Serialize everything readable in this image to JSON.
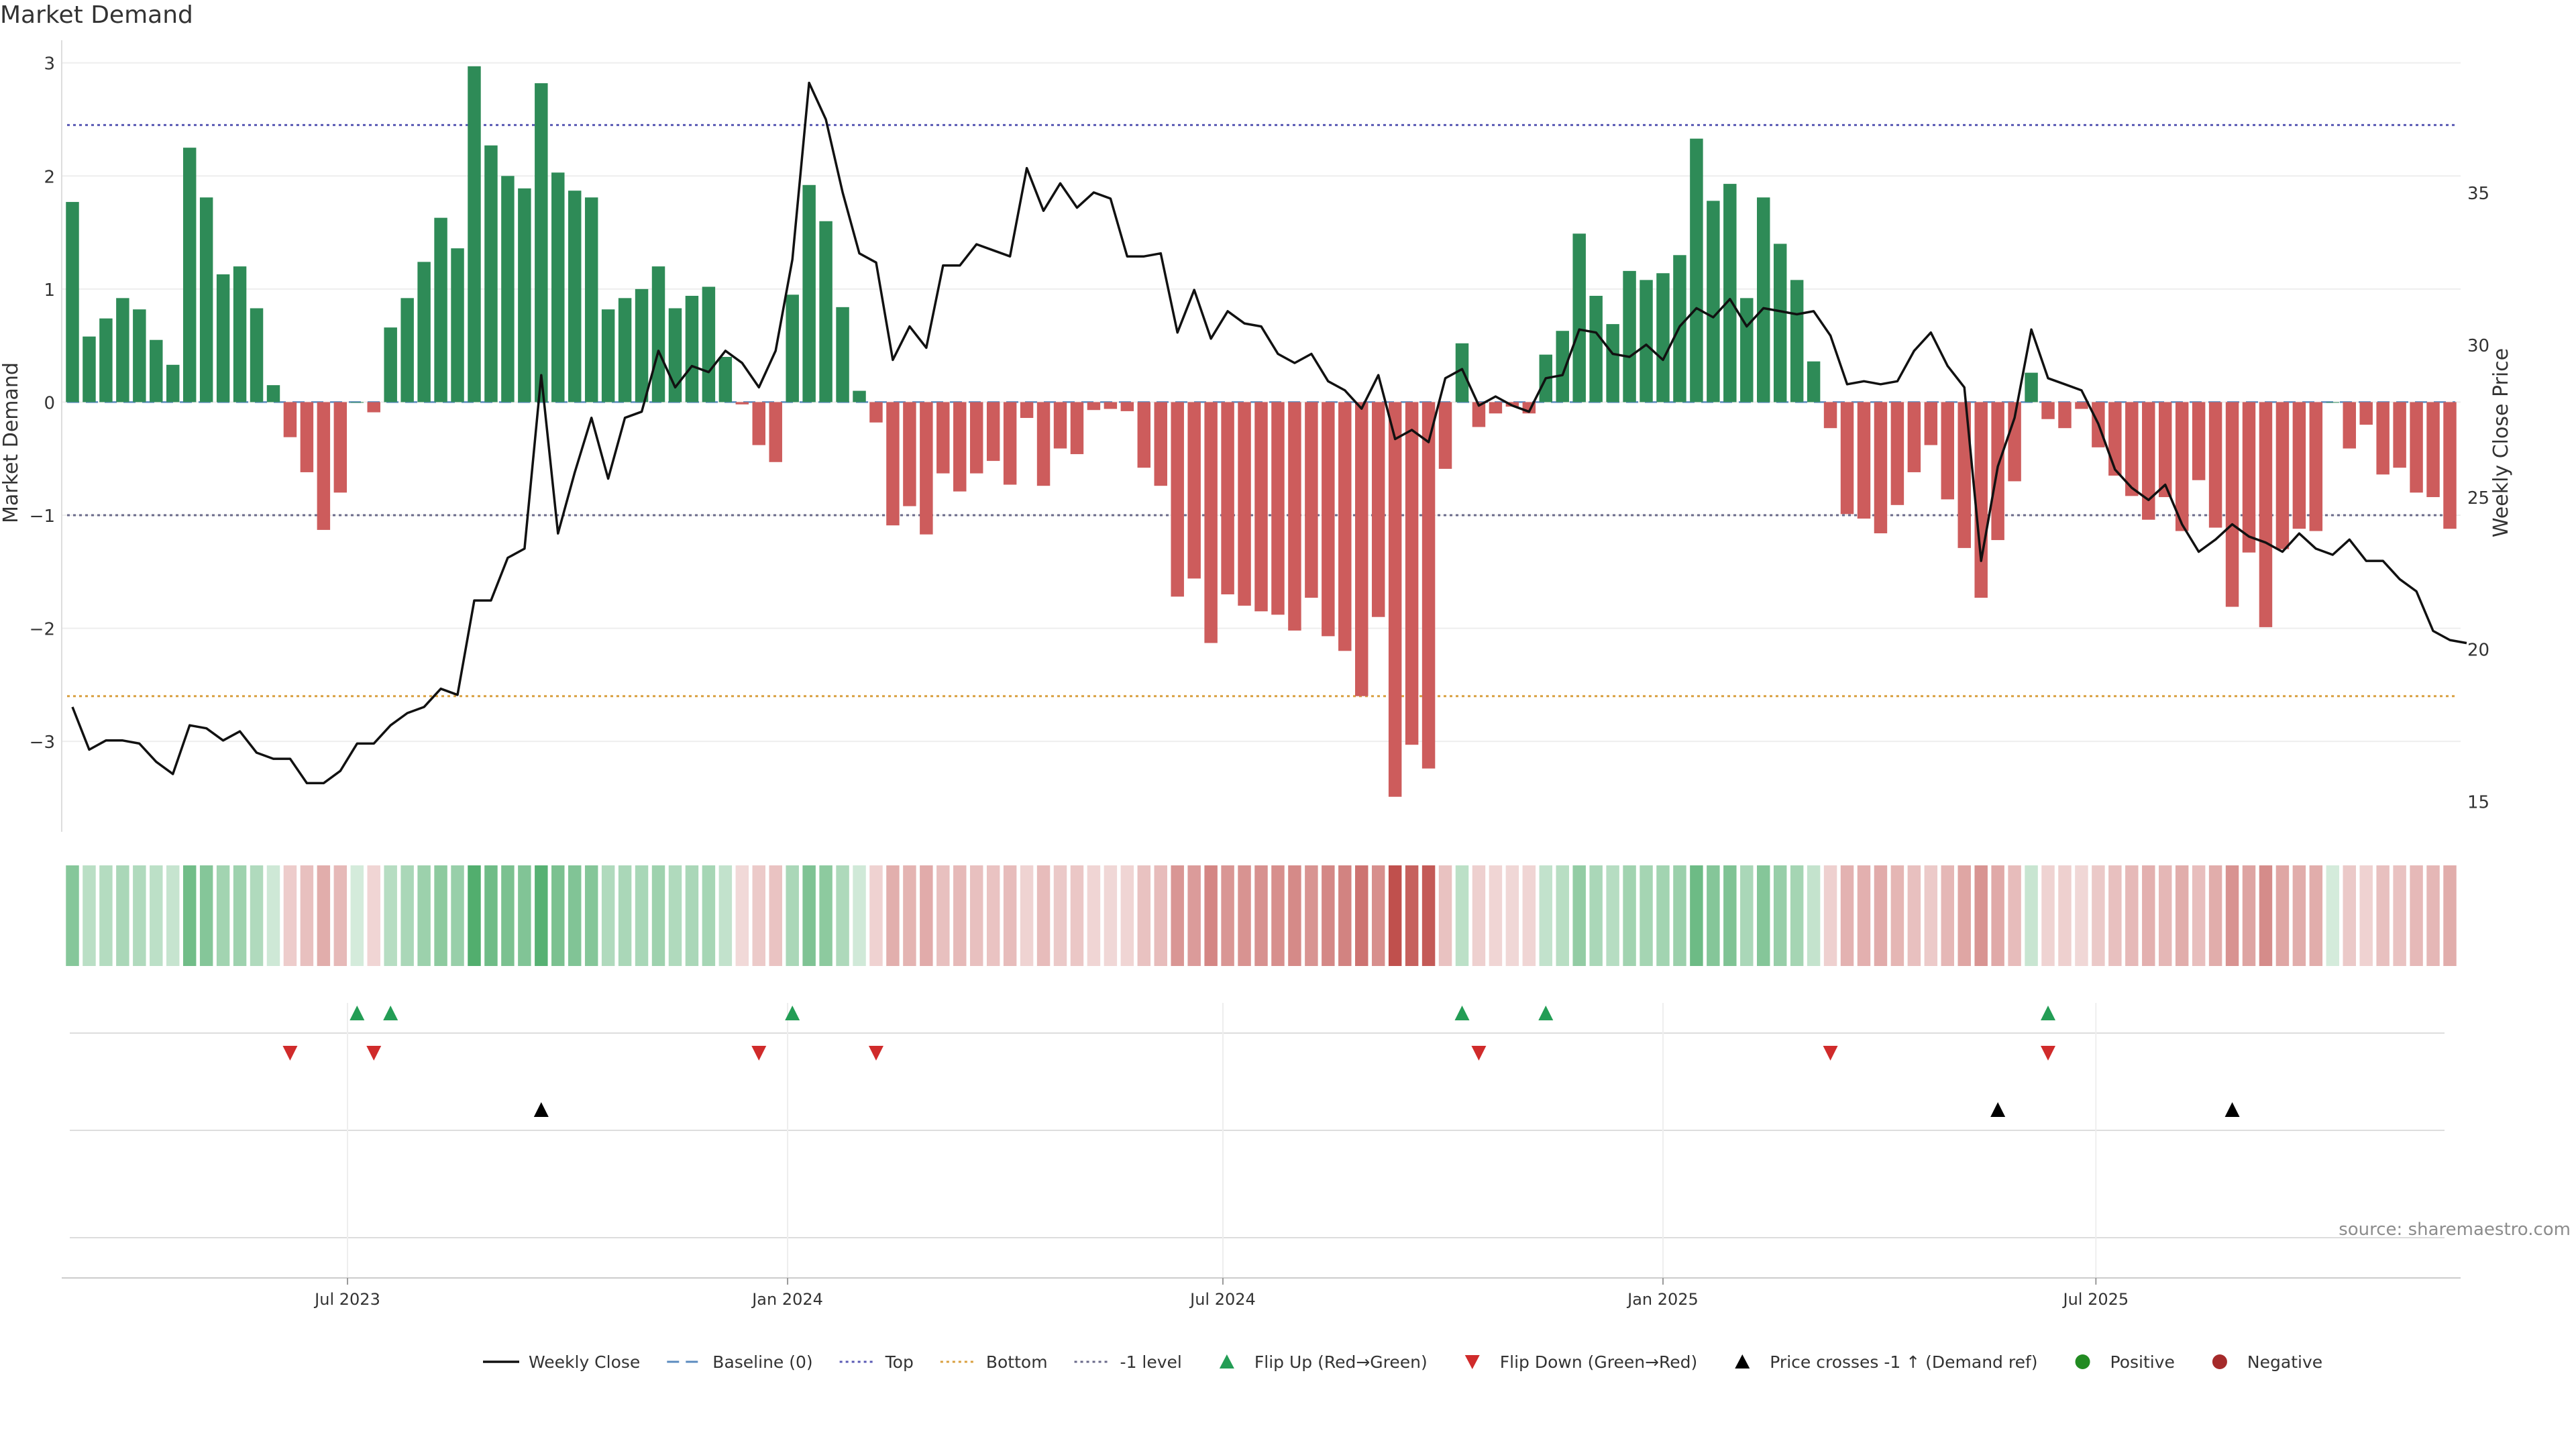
{
  "chart_data": {
    "type": "bar",
    "title": "Market Demand",
    "source": "source: sharemaestro.com",
    "ylabel_left": "Market Demand",
    "ylabel_right": "Weekly Close Price",
    "ylim_left": [
      -3.8,
      3.2
    ],
    "ylim_right": [
      14,
      40
    ],
    "yticks_left": [
      3,
      2,
      1,
      0,
      -1,
      -2,
      -3
    ],
    "yticks_left_labels": [
      "3",
      "2",
      "1",
      "0",
      "−1",
      "−2",
      "−3"
    ],
    "yticks_right": [
      35,
      30,
      25,
      20,
      15
    ],
    "yticks_right_labels": [
      "35",
      "30",
      "25",
      "20",
      "15"
    ],
    "x_start": "2023-03-08",
    "x_step_days": 7,
    "x_end": "2025-11-19",
    "xticks": [
      {
        "date": "2023-07-01",
        "label": "Jul 2023"
      },
      {
        "date": "2024-01-01",
        "label": "Jan 2024"
      },
      {
        "date": "2024-07-01",
        "label": "Jul 2024"
      },
      {
        "date": "2025-01-01",
        "label": "Jan 2025"
      },
      {
        "date": "2025-07-01",
        "label": "Jul 2025"
      }
    ],
    "reference_lines": [
      {
        "name": "Top",
        "value": 2.45,
        "color": "#5a5ab4"
      },
      {
        "name": "Bottom",
        "value": -2.6,
        "color": "#d9a040"
      },
      {
        "name": "-1 level",
        "value": -1,
        "color": "#6a6a8a"
      },
      {
        "name": "Baseline (0)",
        "value": 0,
        "color": "#5b8bbf"
      }
    ],
    "colors": {
      "positive": "#2e8b57",
      "negative": "#cd5c5c",
      "price": "#111111",
      "flip_up": "#239d55",
      "flip_down": "#d02b2b",
      "cross": "#000000",
      "positive_dot": "#228b22",
      "negative_dot": "#a52a2a"
    },
    "demand": [
      1.77,
      0.58,
      0.74,
      0.92,
      0.82,
      0.55,
      0.33,
      2.25,
      1.81,
      1.13,
      1.2,
      0.83,
      0.15,
      -0.31,
      -0.62,
      -1.13,
      -0.8,
      0.0,
      -0.09,
      0.66,
      0.92,
      1.24,
      1.63,
      1.36,
      2.97,
      2.27,
      2.0,
      1.89,
      2.82,
      2.03,
      1.87,
      1.81,
      0.82,
      0.92,
      1.0,
      1.2,
      0.83,
      0.94,
      1.02,
      0.4,
      -0.02,
      -0.38,
      -0.53,
      0.95,
      1.92,
      1.6,
      0.84,
      0.1,
      -0.18,
      -1.09,
      -0.92,
      -1.17,
      -0.63,
      -0.79,
      -0.63,
      -0.52,
      -0.73,
      -0.14,
      -0.74,
      -0.41,
      -0.46,
      -0.07,
      -0.06,
      -0.08,
      -0.58,
      -0.74,
      -1.72,
      -1.56,
      -2.13,
      -1.7,
      -1.8,
      -1.85,
      -1.88,
      -2.02,
      -1.73,
      -2.07,
      -2.2,
      -2.6,
      -1.9,
      -3.49,
      -3.03,
      -3.24,
      -0.59,
      0.52,
      -0.22,
      -0.1,
      -0.04,
      -0.1,
      0.42,
      0.63,
      1.49,
      0.94,
      0.69,
      1.16,
      1.08,
      1.14,
      1.3,
      2.33,
      1.78,
      1.93,
      0.92,
      1.81,
      1.4,
      1.08,
      0.36,
      -0.23,
      -0.99,
      -1.03,
      -1.16,
      -0.91,
      -0.62,
      -0.38,
      -0.86,
      -1.29,
      -1.73,
      -1.22,
      -0.7,
      0.26,
      -0.15,
      -0.23,
      -0.06,
      -0.4,
      -0.65,
      -0.83,
      -1.04,
      -0.84,
      -1.14,
      -0.69,
      -1.11,
      -1.81,
      -1.33,
      -1.99,
      -1.3,
      -1.12,
      -1.14,
      -0.0,
      -0.41,
      -0.2,
      -0.64,
      -0.58,
      -0.8,
      -0.84,
      -1.12
    ],
    "price": [
      18.1,
      16.7,
      17.0,
      17.0,
      16.9,
      16.3,
      15.9,
      17.5,
      17.4,
      17.0,
      17.3,
      16.6,
      16.4,
      16.4,
      15.6,
      15.6,
      16.0,
      16.9,
      16.9,
      17.5,
      17.9,
      18.1,
      18.7,
      18.5,
      21.6,
      21.6,
      23.0,
      23.3,
      29.0,
      23.8,
      25.8,
      27.6,
      25.6,
      27.6,
      27.8,
      29.8,
      28.6,
      29.3,
      29.1,
      29.8,
      29.4,
      28.6,
      29.8,
      32.8,
      38.6,
      37.4,
      35.0,
      33.0,
      32.7,
      29.5,
      30.6,
      29.9,
      32.6,
      32.6,
      33.3,
      33.1,
      32.9,
      35.8,
      34.4,
      35.3,
      34.5,
      35.0,
      34.8,
      32.9,
      32.9,
      33.0,
      30.4,
      31.8,
      30.2,
      31.1,
      30.7,
      30.6,
      29.7,
      29.4,
      29.7,
      28.8,
      28.5,
      27.9,
      29.0,
      26.9,
      27.2,
      26.8,
      28.9,
      29.2,
      28.0,
      28.3,
      28.0,
      27.8,
      28.9,
      29.0,
      30.5,
      30.4,
      29.7,
      29.6,
      30.0,
      29.5,
      30.6,
      31.2,
      30.9,
      31.5,
      30.6,
      31.2,
      31.1,
      31.0,
      31.1,
      30.3,
      28.7,
      28.8,
      28.7,
      28.8,
      29.8,
      30.4,
      29.3,
      28.6,
      22.9,
      26.0,
      27.6,
      30.5,
      28.9,
      28.7,
      28.5,
      27.4,
      25.9,
      25.3,
      24.9,
      25.4,
      24.1,
      23.2,
      23.6,
      24.1,
      23.7,
      23.5,
      23.2,
      23.8,
      23.3,
      23.1,
      23.6,
      22.9,
      22.9,
      22.3,
      21.9,
      20.6,
      20.3,
      20.2
    ],
    "flip_up_weeks": [
      17,
      19,
      43,
      83,
      88,
      118
    ],
    "flip_down_weeks": [
      13,
      18,
      41,
      48,
      84,
      105,
      118
    ],
    "cross_weeks": [
      28,
      115,
      129
    ],
    "legend": [
      {
        "label": "Weekly Close",
        "marker": "line-solid"
      },
      {
        "label": "Baseline (0)",
        "marker": "line-dashed"
      },
      {
        "label": "Top",
        "marker": "line-dotted-blue"
      },
      {
        "label": "Bottom",
        "marker": "line-dotted-orange"
      },
      {
        "label": "-1 level",
        "marker": "line-dotted-gray"
      },
      {
        "label": "Flip Up (Red→Green)",
        "marker": "triangle-up-green"
      },
      {
        "label": "Flip Down (Green→Red)",
        "marker": "triangle-down-red"
      },
      {
        "label": "Price crosses -1 ↑ (Demand ref)",
        "marker": "triangle-up-black"
      },
      {
        "label": "Positive",
        "marker": "dot-green"
      },
      {
        "label": "Negative",
        "marker": "dot-red"
      }
    ],
    "legend_position": "bottom-center"
  }
}
